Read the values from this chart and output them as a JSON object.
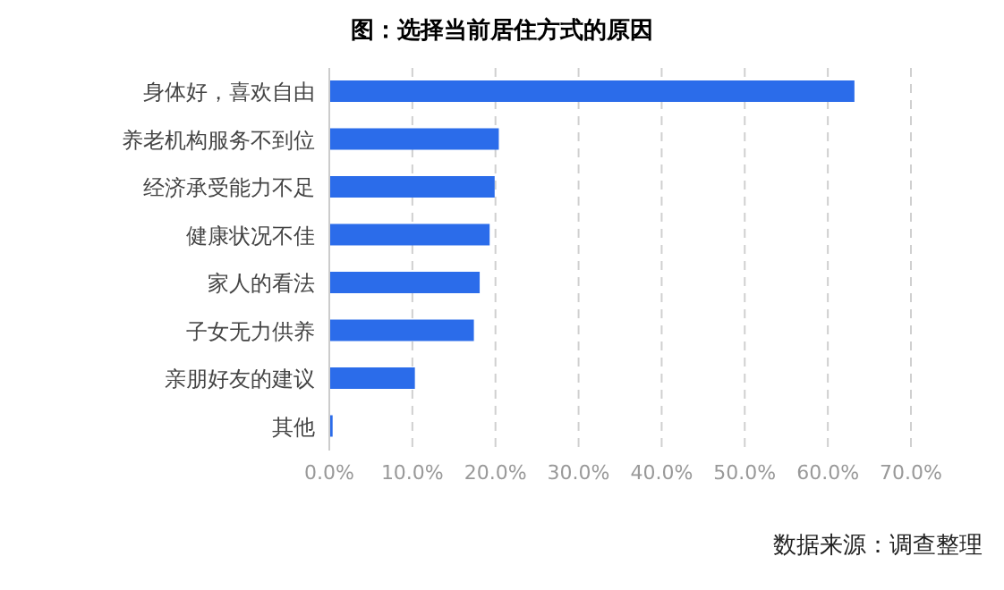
{
  "chart_data": {
    "type": "bar",
    "orientation": "horizontal",
    "title": "图：选择当前居住方式的原因",
    "categories": [
      "身体好，喜欢自由",
      "养老机构服务不到位",
      "经济承受能力不足",
      "健康状况不佳",
      "家人的看法",
      "子女无力供养",
      "亲朋好友的建议",
      "其他"
    ],
    "values": [
      63.2,
      20.4,
      19.9,
      19.3,
      18.1,
      17.4,
      10.3,
      0.4
    ],
    "color": "#2b6cea",
    "xlim": [
      0,
      70
    ],
    "xticks": [
      {
        "value": 0,
        "label": "0.0%"
      },
      {
        "value": 10,
        "label": "10.0%"
      },
      {
        "value": 20,
        "label": "20.0%"
      },
      {
        "value": 30,
        "label": "30.0%"
      },
      {
        "value": 40,
        "label": "40.0%"
      },
      {
        "value": 50,
        "label": "50.0%"
      },
      {
        "value": 60,
        "label": "60.0%"
      },
      {
        "value": 70,
        "label": "70.0%"
      }
    ],
    "grid": "x",
    "annotations": [
      "数据来源：调查整理"
    ]
  }
}
